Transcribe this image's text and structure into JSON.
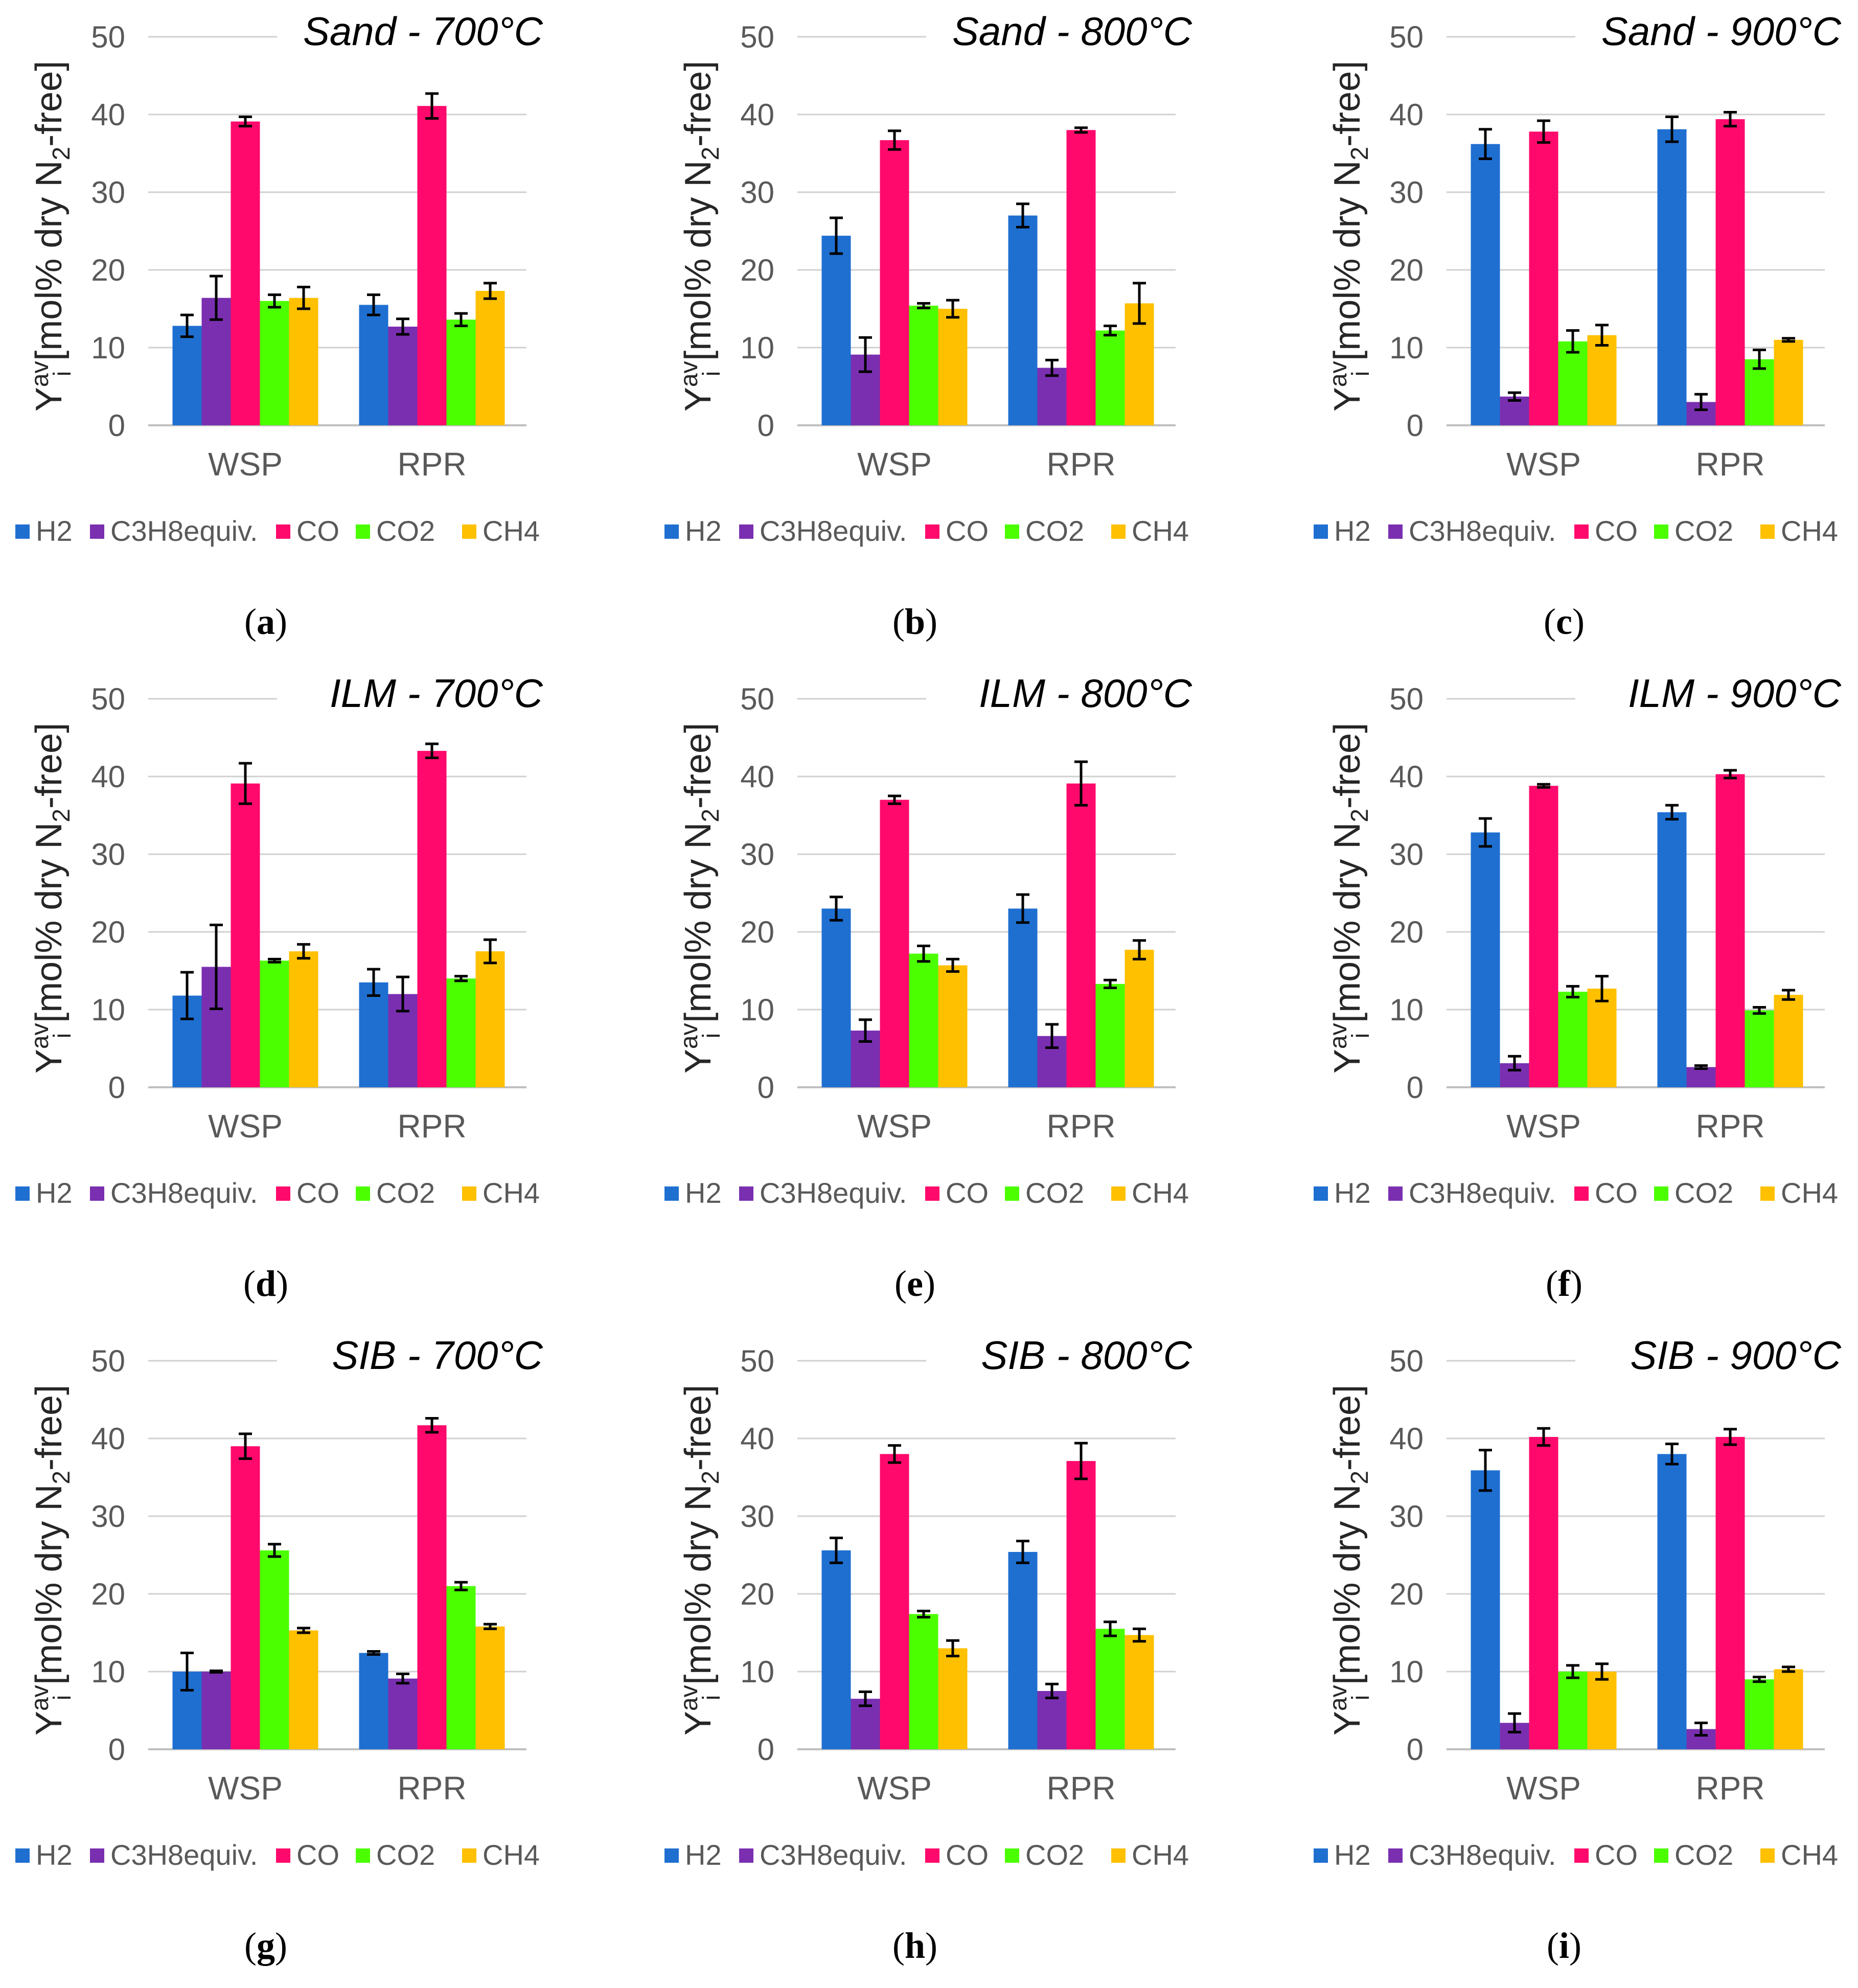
{
  "colors": {
    "H2": "#1f6fd1",
    "C3H8equiv.": "#7a2fb0",
    "CO": "#ff0a6c",
    "CO2": "#4cff00",
    "CH4": "#ffc000",
    "axis": "#bfbfbf",
    "grid": "#d0d0d0",
    "error_bar": "#000000"
  },
  "shared": {
    "ylabel": {
      "main": "Y",
      "sup": "av",
      "sub": "i",
      "rest1": " [mol% dry N",
      "sub2": "2",
      "rest2": "-free]"
    },
    "legend": [
      "H2",
      "C3H8equiv.",
      "CO",
      "CO2",
      "CH4"
    ],
    "categories": [
      "WSP",
      "RPR"
    ],
    "ylim": [
      0,
      50
    ],
    "yticks": [
      0,
      10,
      20,
      30,
      40,
      50
    ]
  },
  "chart_data": [
    {
      "panel": "(a)",
      "letter": "a",
      "type": "bar",
      "title": "Sand - 700°C",
      "categories": [
        "WSP",
        "RPR"
      ],
      "ylim": [
        0,
        50
      ],
      "series": [
        {
          "name": "H2",
          "values": [
            12.8,
            15.5
          ],
          "errors": [
            1.4,
            1.3
          ]
        },
        {
          "name": "C3H8equiv.",
          "values": [
            16.4,
            12.7
          ],
          "errors": [
            2.8,
            1.0
          ]
        },
        {
          "name": "CO",
          "values": [
            39.1,
            41.1
          ],
          "errors": [
            0.6,
            1.6
          ]
        },
        {
          "name": "CO2",
          "values": [
            16.0,
            13.6
          ],
          "errors": [
            0.8,
            0.8
          ]
        },
        {
          "name": "CH4",
          "values": [
            16.4,
            17.3
          ],
          "errors": [
            1.4,
            1.0
          ]
        }
      ]
    },
    {
      "panel": "(b)",
      "letter": "b",
      "type": "bar",
      "title": "Sand - 800°C",
      "categories": [
        "WSP",
        "RPR"
      ],
      "ylim": [
        0,
        50
      ],
      "series": [
        {
          "name": "H2",
          "values": [
            24.4,
            27.0
          ],
          "errors": [
            2.3,
            1.5
          ]
        },
        {
          "name": "C3H8equiv.",
          "values": [
            9.1,
            7.4
          ],
          "errors": [
            2.2,
            1.0
          ]
        },
        {
          "name": "CO",
          "values": [
            36.7,
            38.0
          ],
          "errors": [
            1.2,
            0.3
          ]
        },
        {
          "name": "CO2",
          "values": [
            15.4,
            12.2
          ],
          "errors": [
            0.3,
            0.6
          ]
        },
        {
          "name": "CH4",
          "values": [
            15.0,
            15.7
          ],
          "errors": [
            1.1,
            2.6
          ]
        }
      ]
    },
    {
      "panel": "(c)",
      "letter": "c",
      "type": "bar",
      "title": "Sand - 900°C",
      "categories": [
        "WSP",
        "RPR"
      ],
      "ylim": [
        0,
        50
      ],
      "series": [
        {
          "name": "H2",
          "values": [
            36.2,
            38.1
          ],
          "errors": [
            1.9,
            1.6
          ]
        },
        {
          "name": "C3H8equiv.",
          "values": [
            3.7,
            3.0
          ],
          "errors": [
            0.5,
            1.0
          ]
        },
        {
          "name": "CO",
          "values": [
            37.8,
            39.4
          ],
          "errors": [
            1.4,
            0.9
          ]
        },
        {
          "name": "CO2",
          "values": [
            10.8,
            8.5
          ],
          "errors": [
            1.4,
            1.2
          ]
        },
        {
          "name": "CH4",
          "values": [
            11.6,
            11.0
          ],
          "errors": [
            1.3,
            0.2
          ]
        }
      ]
    },
    {
      "panel": "(d)",
      "letter": "d",
      "type": "bar",
      "title": "ILM - 700°C",
      "categories": [
        "WSP",
        "RPR"
      ],
      "ylim": [
        0,
        50
      ],
      "series": [
        {
          "name": "H2",
          "values": [
            11.8,
            13.5
          ],
          "errors": [
            3.0,
            1.7
          ]
        },
        {
          "name": "C3H8equiv.",
          "values": [
            15.5,
            12.0
          ],
          "errors": [
            5.4,
            2.2
          ]
        },
        {
          "name": "CO",
          "values": [
            39.1,
            43.3
          ],
          "errors": [
            2.6,
            0.9
          ]
        },
        {
          "name": "CO2",
          "values": [
            16.3,
            14.0
          ],
          "errors": [
            0.2,
            0.3
          ]
        },
        {
          "name": "CH4",
          "values": [
            17.5,
            17.5
          ],
          "errors": [
            0.9,
            1.5
          ]
        }
      ]
    },
    {
      "panel": "(e)",
      "letter": "e",
      "type": "bar",
      "title": "ILM - 800°C",
      "categories": [
        "WSP",
        "RPR"
      ],
      "ylim": [
        0,
        50
      ],
      "series": [
        {
          "name": "H2",
          "values": [
            23.0,
            23.0
          ],
          "errors": [
            1.5,
            1.8
          ]
        },
        {
          "name": "C3H8equiv.",
          "values": [
            7.3,
            6.6
          ],
          "errors": [
            1.4,
            1.5
          ]
        },
        {
          "name": "CO",
          "values": [
            37.0,
            39.1
          ],
          "errors": [
            0.5,
            2.8
          ]
        },
        {
          "name": "CO2",
          "values": [
            17.2,
            13.3
          ],
          "errors": [
            1.0,
            0.5
          ]
        },
        {
          "name": "CH4",
          "values": [
            15.7,
            17.7
          ],
          "errors": [
            0.8,
            1.2
          ]
        }
      ]
    },
    {
      "panel": "(f)",
      "letter": "f",
      "type": "bar",
      "title": "ILM - 900°C",
      "categories": [
        "WSP",
        "RPR"
      ],
      "ylim": [
        0,
        50
      ],
      "series": [
        {
          "name": "H2",
          "values": [
            32.8,
            35.4
          ],
          "errors": [
            1.8,
            0.9
          ]
        },
        {
          "name": "C3H8equiv.",
          "values": [
            3.1,
            2.6
          ],
          "errors": [
            0.9,
            0.2
          ]
        },
        {
          "name": "CO",
          "values": [
            38.8,
            40.3
          ],
          "errors": [
            0.2,
            0.5
          ]
        },
        {
          "name": "CO2",
          "values": [
            12.3,
            9.9
          ],
          "errors": [
            0.7,
            0.4
          ]
        },
        {
          "name": "CH4",
          "values": [
            12.7,
            11.9
          ],
          "errors": [
            1.6,
            0.6
          ]
        }
      ]
    },
    {
      "panel": "(g)",
      "letter": "g",
      "type": "bar",
      "title": "SIB - 700°C",
      "categories": [
        "WSP",
        "RPR"
      ],
      "ylim": [
        0,
        50
      ],
      "series": [
        {
          "name": "H2",
          "values": [
            10.0,
            12.4
          ],
          "errors": [
            2.4,
            0.2
          ]
        },
        {
          "name": "C3H8equiv.",
          "values": [
            10.0,
            9.1
          ],
          "errors": [
            0.1,
            0.6
          ]
        },
        {
          "name": "CO",
          "values": [
            39.0,
            41.7
          ],
          "errors": [
            1.6,
            0.9
          ]
        },
        {
          "name": "CO2",
          "values": [
            25.6,
            21.0
          ],
          "errors": [
            0.8,
            0.5
          ]
        },
        {
          "name": "CH4",
          "values": [
            15.3,
            15.8
          ],
          "errors": [
            0.3,
            0.3
          ]
        }
      ]
    },
    {
      "panel": "(h)",
      "letter": "h",
      "type": "bar",
      "title": "SIB - 800°C",
      "categories": [
        "WSP",
        "RPR"
      ],
      "ylim": [
        0,
        50
      ],
      "series": [
        {
          "name": "H2",
          "values": [
            25.6,
            25.4
          ],
          "errors": [
            1.6,
            1.4
          ]
        },
        {
          "name": "C3H8equiv.",
          "values": [
            6.5,
            7.5
          ],
          "errors": [
            0.9,
            0.9
          ]
        },
        {
          "name": "CO",
          "values": [
            38.0,
            37.1
          ],
          "errors": [
            1.1,
            2.3
          ]
        },
        {
          "name": "CO2",
          "values": [
            17.4,
            15.5
          ],
          "errors": [
            0.4,
            0.9
          ]
        },
        {
          "name": "CH4",
          "values": [
            13.0,
            14.7
          ],
          "errors": [
            1.0,
            0.8
          ]
        }
      ]
    },
    {
      "panel": "(i)",
      "letter": "i",
      "type": "bar",
      "title": "SIB - 900°C",
      "categories": [
        "WSP",
        "RPR"
      ],
      "ylim": [
        0,
        50
      ],
      "series": [
        {
          "name": "H2",
          "values": [
            35.9,
            38.0
          ],
          "errors": [
            2.6,
            1.3
          ]
        },
        {
          "name": "C3H8equiv.",
          "values": [
            3.4,
            2.6
          ],
          "errors": [
            1.2,
            0.8
          ]
        },
        {
          "name": "CO",
          "values": [
            40.2,
            40.2
          ],
          "errors": [
            1.1,
            1.0
          ]
        },
        {
          "name": "CO2",
          "values": [
            10.0,
            9.0
          ],
          "errors": [
            0.8,
            0.3
          ]
        },
        {
          "name": "CH4",
          "values": [
            10.0,
            10.3
          ],
          "errors": [
            1.0,
            0.3
          ]
        }
      ]
    }
  ]
}
